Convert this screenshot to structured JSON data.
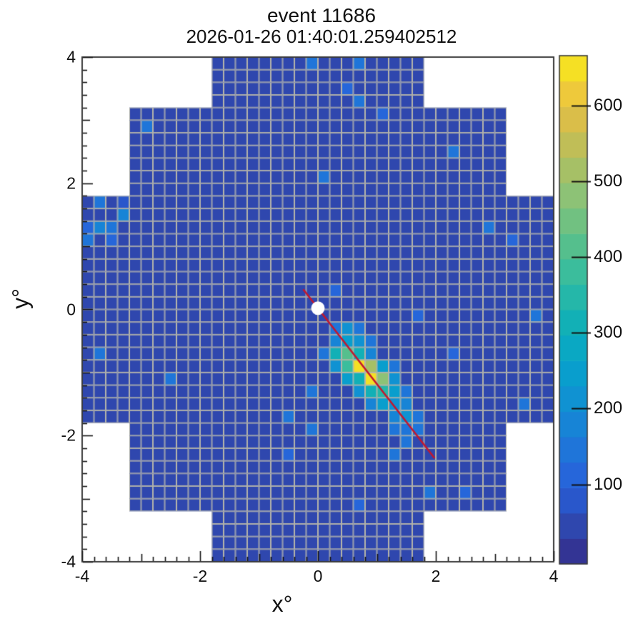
{
  "header": {
    "title": "event 11686",
    "subtitle": "2026-01-26 01:40:01.259402512"
  },
  "chart_data": {
    "type": "heatmap",
    "title": "event 11686",
    "subtitle": "2026-01-26 01:40:01.259402512",
    "xlabel": "x°",
    "ylabel": "y°",
    "xlim": [
      -4,
      4
    ],
    "ylim": [
      -4,
      4
    ],
    "x_ticks": [
      -4,
      -2,
      0,
      2,
      4
    ],
    "y_ticks": [
      -4,
      -2,
      0,
      2,
      4
    ],
    "minor_tick_step": 0.2,
    "medium_tick_step": 1,
    "grid_on": true,
    "cell_size_deg": 0.2,
    "camera_bands": [
      {
        "y": [
          3.2,
          4.0
        ],
        "x": [
          -1.8,
          1.8
        ]
      },
      {
        "y": [
          1.8,
          3.2
        ],
        "x": [
          -3.2,
          3.2
        ]
      },
      {
        "y": [
          -1.8,
          1.8
        ],
        "x": [
          -4.0,
          4.0
        ]
      },
      {
        "y": [
          -3.2,
          -1.8
        ],
        "x": [
          -3.2,
          3.2
        ]
      },
      {
        "y": [
          -4.0,
          -3.2
        ],
        "x": [
          -1.8,
          1.8
        ]
      }
    ],
    "baseline_value": 30,
    "noise_cells": [
      [
        -0.2,
        3.8,
        140
      ],
      [
        0.6,
        3.8,
        130
      ],
      [
        0.4,
        3.4,
        100
      ],
      [
        0.6,
        3.2,
        150
      ],
      [
        1.0,
        3.0,
        120
      ],
      [
        -3.0,
        2.8,
        130
      ],
      [
        2.2,
        2.4,
        140
      ],
      [
        0.0,
        2.0,
        130
      ],
      [
        -3.8,
        1.6,
        140
      ],
      [
        -3.4,
        1.6,
        90
      ],
      [
        -3.4,
        1.4,
        170
      ],
      [
        -4.0,
        1.2,
        100
      ],
      [
        -3.8,
        1.2,
        180
      ],
      [
        -3.6,
        1.2,
        140
      ],
      [
        -4.0,
        1.0,
        130
      ],
      [
        -3.6,
        1.0,
        100
      ],
      [
        2.8,
        1.2,
        150
      ],
      [
        3.2,
        1.0,
        110
      ],
      [
        0.2,
        0.2,
        100
      ],
      [
        1.6,
        -0.2,
        120
      ],
      [
        3.6,
        -0.2,
        150
      ],
      [
        2.2,
        -0.8,
        110
      ],
      [
        -3.8,
        -0.8,
        140
      ],
      [
        -2.6,
        -1.2,
        130
      ],
      [
        -0.2,
        -1.4,
        150
      ],
      [
        -0.6,
        -1.8,
        140
      ],
      [
        -0.2,
        -2.0,
        130
      ],
      [
        -0.6,
        -2.4,
        120
      ],
      [
        3.4,
        -1.6,
        150
      ],
      [
        1.2,
        -2.0,
        140
      ],
      [
        1.4,
        -2.2,
        150
      ],
      [
        1.2,
        -2.4,
        130
      ],
      [
        1.8,
        -3.0,
        130
      ],
      [
        2.4,
        -3.0,
        120
      ],
      [
        0.6,
        -3.2,
        120
      ]
    ],
    "shower_cells": [
      [
        0.2,
        -0.4,
        150
      ],
      [
        0.4,
        -0.4,
        210
      ],
      [
        0.6,
        -0.4,
        150
      ],
      [
        0.2,
        -0.6,
        170
      ],
      [
        0.4,
        -0.6,
        260
      ],
      [
        0.6,
        -0.6,
        200
      ],
      [
        0.8,
        -0.6,
        140
      ],
      [
        0.0,
        -0.8,
        140
      ],
      [
        0.2,
        -0.8,
        300
      ],
      [
        0.4,
        -0.8,
        430
      ],
      [
        0.6,
        -0.8,
        330
      ],
      [
        0.8,
        -0.8,
        180
      ],
      [
        0.2,
        -1.0,
        200
      ],
      [
        0.4,
        -1.0,
        380
      ],
      [
        0.6,
        -1.0,
        655
      ],
      [
        0.8,
        -1.0,
        500
      ],
      [
        1.0,
        -1.0,
        240
      ],
      [
        1.2,
        -1.0,
        150
      ],
      [
        0.4,
        -1.2,
        240
      ],
      [
        0.6,
        -1.2,
        320
      ],
      [
        0.8,
        -1.2,
        640
      ],
      [
        1.0,
        -1.2,
        480
      ],
      [
        1.2,
        -1.2,
        210
      ],
      [
        0.6,
        -1.4,
        200
      ],
      [
        0.8,
        -1.4,
        300
      ],
      [
        1.0,
        -1.4,
        360
      ],
      [
        1.2,
        -1.4,
        250
      ],
      [
        1.4,
        -1.4,
        160
      ],
      [
        0.8,
        -1.6,
        170
      ],
      [
        1.0,
        -1.6,
        240
      ],
      [
        1.2,
        -1.6,
        220
      ],
      [
        1.4,
        -1.6,
        170
      ],
      [
        1.2,
        -1.8,
        170
      ],
      [
        1.4,
        -1.8,
        200
      ],
      [
        1.6,
        -1.8,
        150
      ],
      [
        1.4,
        -2.0,
        150
      ],
      [
        1.6,
        -2.0,
        160
      ]
    ],
    "reco_line": {
      "x1": -0.25,
      "y1": 0.32,
      "x2": 1.98,
      "y2": -2.36,
      "color": "#c2182f",
      "width": 2.6
    },
    "source_marker": {
      "x": 0.0,
      "y": 0.02,
      "radius_px": 9.5,
      "color": "#ffffff"
    },
    "colorbar": {
      "vmin": -5,
      "vmax": 666,
      "levels": 20,
      "ticks": [
        100,
        200,
        300,
        400,
        500,
        600
      ]
    },
    "colormap": [
      [
        0.0,
        "#352a87"
      ],
      [
        0.06,
        "#3142a5"
      ],
      [
        0.12,
        "#2955c9"
      ],
      [
        0.18,
        "#2667db"
      ],
      [
        0.25,
        "#1b7dd8"
      ],
      [
        0.32,
        "#1191d2"
      ],
      [
        0.4,
        "#06a4ca"
      ],
      [
        0.48,
        "#13b1b5"
      ],
      [
        0.56,
        "#33bca0"
      ],
      [
        0.64,
        "#5dc088"
      ],
      [
        0.72,
        "#8ac278"
      ],
      [
        0.8,
        "#b3bf5e"
      ],
      [
        0.87,
        "#d8bd4a"
      ],
      [
        0.93,
        "#f0ca3a"
      ],
      [
        1.0,
        "#f8ec18"
      ]
    ],
    "grid_color": "#b4b4aa",
    "frame_color": "#3a3a3a",
    "tick_color": "#111111",
    "text_color": "#111111"
  }
}
